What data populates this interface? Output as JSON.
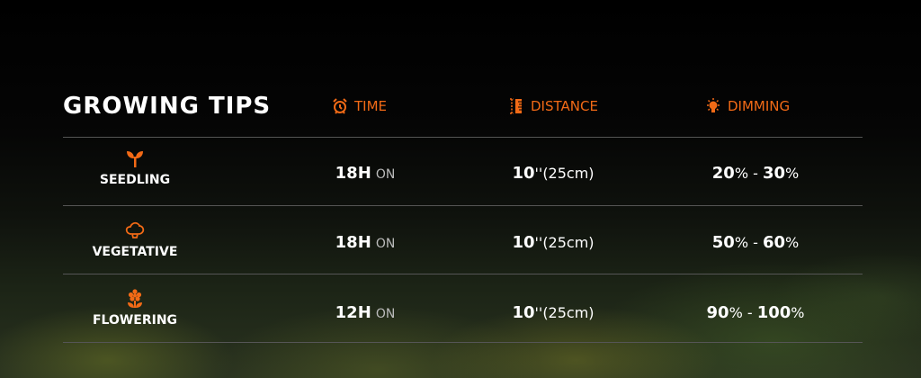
{
  "title": "GROWING TIPS",
  "headers": {
    "time": "TIME",
    "distance": "DISTANCE",
    "dimming": "DIMMING"
  },
  "accent_color": "#f26a16",
  "rows": [
    {
      "stage": "SEEDLING",
      "icon": "sprout-icon",
      "hours": "18H",
      "hours_suffix": "ON",
      "distance": "10",
      "distance_unit": "''(25cm)",
      "dim_low": "20",
      "dim_high": "30",
      "pct": "%",
      "sep": " - "
    },
    {
      "stage": "VEGETATIVE",
      "icon": "tree-icon",
      "hours": "18H",
      "hours_suffix": "ON",
      "distance": "10",
      "distance_unit": "''(25cm)",
      "dim_low": "50",
      "dim_high": "60",
      "pct": "%",
      "sep": " - "
    },
    {
      "stage": "FLOWERING",
      "icon": "flower-icon",
      "hours": "12H",
      "hours_suffix": "ON",
      "distance": "10",
      "distance_unit": "''(25cm)",
      "dim_low": "90",
      "dim_high": "100",
      "pct": "%",
      "sep": " - "
    }
  ]
}
